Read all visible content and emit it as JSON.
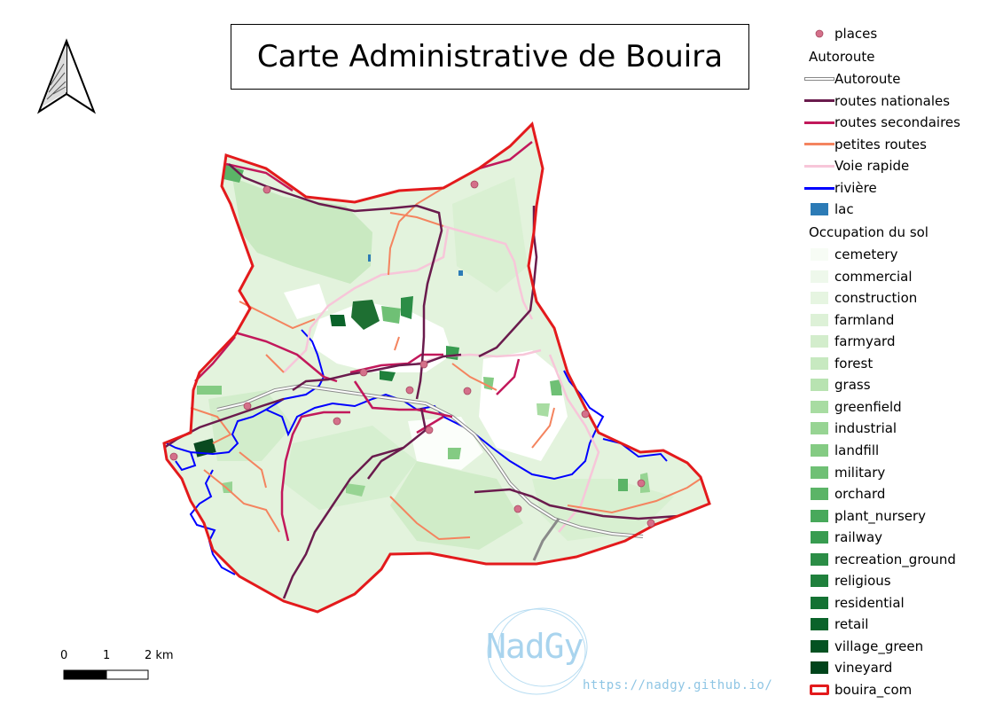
{
  "title": "Carte Administrative de Bouira",
  "scale_bar": {
    "labels": [
      "0",
      "1",
      "2 km"
    ]
  },
  "north_arrow": {
    "icon": "north-arrow-icon"
  },
  "watermark": {
    "logo": "NadGy",
    "url": "https://nadgy.github.io/"
  },
  "colors": {
    "boundary": "#e31a1c",
    "autoroute": "#9a9a9a",
    "routes_nationales": "#6a1b4d",
    "routes_secondaires": "#c2185b",
    "petites_routes": "#f4845f",
    "voie_rapide": "#f7c6d9",
    "riviere": "#0000ff",
    "lac": "#2c7bb6",
    "places": "#d4708a"
  },
  "legend": {
    "places": "places",
    "autoroute_header": "Autoroute",
    "lines": [
      {
        "label": "Autoroute",
        "color": "#ffffff",
        "outline": "#888888"
      },
      {
        "label": "routes nationales",
        "color": "#6a1b4d"
      },
      {
        "label": "routes secondaires",
        "color": "#c2185b"
      },
      {
        "label": "petites routes",
        "color": "#f4845f"
      },
      {
        "label": "Voie rapide",
        "color": "#f7c6d9"
      },
      {
        "label": "rivière",
        "color": "#0000ff"
      }
    ],
    "lac": "lac",
    "landuse_header": "Occupation du sol",
    "landuse": [
      {
        "label": "cemetery",
        "color": "#f7fcf5"
      },
      {
        "label": "commercial",
        "color": "#eef8eb"
      },
      {
        "label": "construction",
        "color": "#e6f5e1"
      },
      {
        "label": "farmland",
        "color": "#ddf1d7"
      },
      {
        "label": "farmyard",
        "color": "#d3edcc"
      },
      {
        "label": "forest",
        "color": "#c7e9c0"
      },
      {
        "label": "grass",
        "color": "#b8e3b1"
      },
      {
        "label": "greenfield",
        "color": "#a8dca2"
      },
      {
        "label": "industrial",
        "color": "#97d493"
      },
      {
        "label": "landfill",
        "color": "#84cb83"
      },
      {
        "label": "military",
        "color": "#6fc075"
      },
      {
        "label": "orchard",
        "color": "#5bb467"
      },
      {
        "label": "plant_nursery",
        "color": "#48a95b"
      },
      {
        "label": "railway",
        "color": "#389c50"
      },
      {
        "label": "recreation_ground",
        "color": "#2b8d46"
      },
      {
        "label": "religious",
        "color": "#1f803c"
      },
      {
        "label": "residential",
        "color": "#147233"
      },
      {
        "label": "retail",
        "color": "#0a632a"
      },
      {
        "label": "village_green",
        "color": "#045222"
      },
      {
        "label": "vineyard",
        "color": "#00441b"
      }
    ],
    "boundary": "bouira_com"
  }
}
